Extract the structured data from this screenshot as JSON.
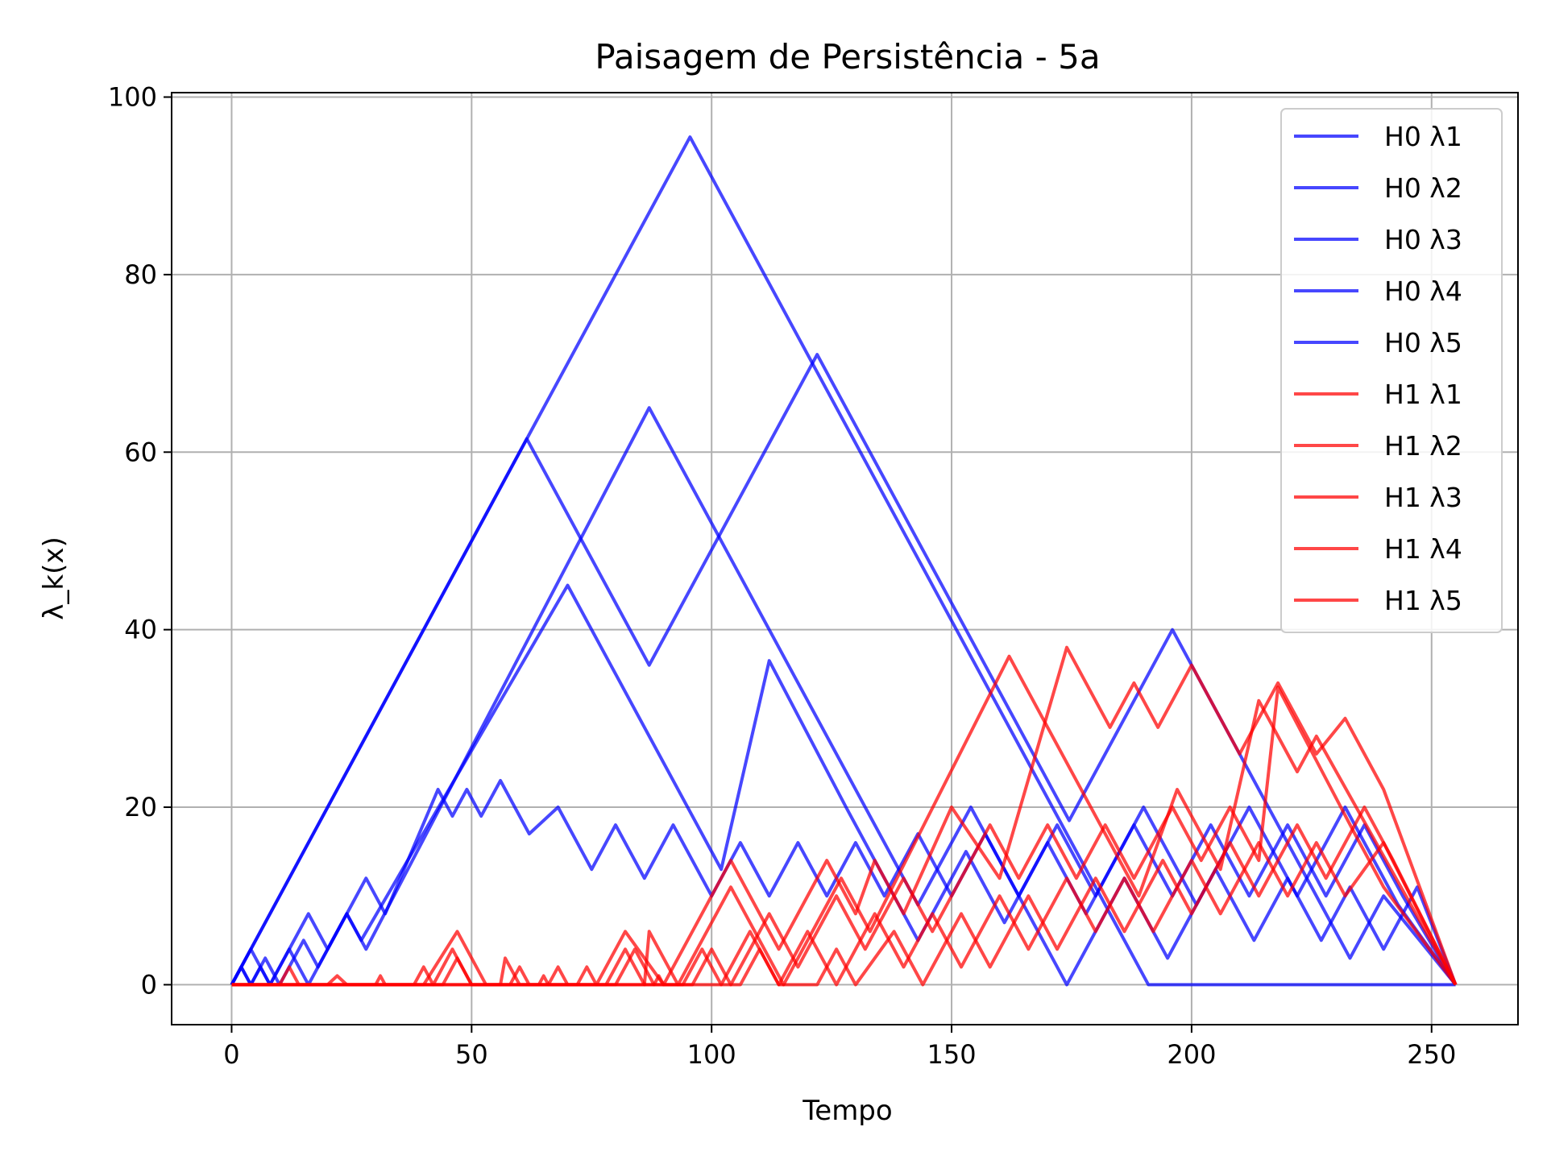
{
  "chart_data": {
    "type": "line",
    "title": "Paisagem de Persistência - 5a",
    "xlabel": "Tempo",
    "ylabel": "λ_k(x)",
    "xlim": [
      -12.5,
      268
    ],
    "ylim": [
      -4.5,
      100.5
    ],
    "xticks": [
      0,
      50,
      100,
      150,
      200,
      250
    ],
    "yticks": [
      0,
      20,
      40,
      60,
      80,
      100
    ],
    "grid": true,
    "legend_position": "upper right",
    "series": [
      {
        "name": "H0 λ1",
        "color": "#0000ff",
        "points": [
          [
            0,
            0
          ],
          [
            95.5,
            95.5
          ],
          [
            191,
            0
          ],
          [
            255,
            0
          ]
        ]
      },
      {
        "name": "H0 λ2",
        "color": "#0000ff",
        "points": [
          [
            0,
            0
          ],
          [
            61.5,
            61.5
          ],
          [
            87,
            36
          ],
          [
            122,
            71
          ],
          [
            160,
            33
          ],
          [
            174.5,
            18.5
          ],
          [
            196,
            40
          ],
          [
            233,
            3
          ],
          [
            240,
            10
          ],
          [
            255,
            0
          ]
        ]
      },
      {
        "name": "H0 λ3",
        "color": "#0000ff",
        "points": [
          [
            0,
            0
          ],
          [
            4,
            4
          ],
          [
            8,
            0
          ],
          [
            12,
            4
          ],
          [
            16,
            0
          ],
          [
            24,
            8
          ],
          [
            28,
            4
          ],
          [
            87,
            65
          ],
          [
            111,
            41
          ],
          [
            143,
            9
          ],
          [
            154,
            20
          ],
          [
            174,
            0
          ],
          [
            186,
            12
          ],
          [
            195,
            3
          ],
          [
            205,
            13
          ],
          [
            213,
            5
          ],
          [
            220,
            12
          ],
          [
            227,
            5
          ],
          [
            233,
            11
          ],
          [
            240,
            4
          ],
          [
            247,
            11
          ],
          [
            255,
            0
          ]
        ]
      },
      {
        "name": "H0 λ4",
        "color": "#0000ff",
        "points": [
          [
            0,
            0
          ],
          [
            2,
            2
          ],
          [
            4,
            0
          ],
          [
            6,
            2
          ],
          [
            8,
            0
          ],
          [
            16,
            8
          ],
          [
            20,
            4
          ],
          [
            24,
            8
          ],
          [
            27,
            5
          ],
          [
            70,
            45
          ],
          [
            102,
            13
          ],
          [
            112,
            36.5
          ],
          [
            128,
            20
          ],
          [
            143,
            5
          ],
          [
            153,
            15
          ],
          [
            161,
            7
          ],
          [
            170,
            16
          ],
          [
            178,
            8
          ],
          [
            190,
            20
          ],
          [
            201,
            9
          ],
          [
            212,
            20
          ],
          [
            222,
            10
          ],
          [
            232,
            20
          ],
          [
            243,
            9
          ],
          [
            255,
            0
          ]
        ]
      },
      {
        "name": "H0 λ5",
        "color": "#0000ff",
        "points": [
          [
            0,
            0
          ],
          [
            2,
            2
          ],
          [
            4,
            0
          ],
          [
            7,
            3
          ],
          [
            10,
            0
          ],
          [
            15,
            5
          ],
          [
            18,
            2
          ],
          [
            28,
            12
          ],
          [
            32,
            8
          ],
          [
            43,
            22
          ],
          [
            46,
            19
          ],
          [
            49,
            22
          ],
          [
            52,
            19
          ],
          [
            56,
            23
          ],
          [
            62,
            17
          ],
          [
            68,
            20
          ],
          [
            75,
            13
          ],
          [
            80,
            18
          ],
          [
            86,
            12
          ],
          [
            92,
            18
          ],
          [
            100,
            10
          ],
          [
            106,
            16
          ],
          [
            112,
            10
          ],
          [
            118,
            16
          ],
          [
            124,
            10
          ],
          [
            130,
            16
          ],
          [
            136,
            10
          ],
          [
            143,
            17
          ],
          [
            150,
            10
          ],
          [
            157,
            17
          ],
          [
            164,
            10
          ],
          [
            172,
            18
          ],
          [
            180,
            10
          ],
          [
            188,
            18
          ],
          [
            196,
            10
          ],
          [
            204,
            18
          ],
          [
            212,
            10
          ],
          [
            220,
            18
          ],
          [
            228,
            10
          ],
          [
            236,
            18
          ],
          [
            244,
            10
          ],
          [
            255,
            0
          ]
        ]
      },
      {
        "name": "H1 λ1",
        "color": "#ff0000",
        "points": [
          [
            0,
            0
          ],
          [
            10,
            0
          ],
          [
            12,
            2
          ],
          [
            14,
            0
          ],
          [
            40,
            0
          ],
          [
            47,
            6
          ],
          [
            53,
            0
          ],
          [
            86,
            0
          ],
          [
            87,
            6
          ],
          [
            93,
            0
          ],
          [
            104,
            11
          ],
          [
            115,
            0
          ],
          [
            127,
            12
          ],
          [
            133,
            6
          ],
          [
            162,
            37
          ],
          [
            189,
            10
          ],
          [
            197,
            22
          ],
          [
            206,
            13
          ],
          [
            214,
            32
          ],
          [
            222,
            24
          ],
          [
            226,
            28
          ],
          [
            255,
            0
          ]
        ]
      },
      {
        "name": "H1 λ2",
        "color": "#ff0000",
        "points": [
          [
            0,
            0
          ],
          [
            20,
            0
          ],
          [
            22,
            1
          ],
          [
            24,
            0
          ],
          [
            38,
            0
          ],
          [
            40,
            2
          ],
          [
            42,
            0
          ],
          [
            46,
            4
          ],
          [
            50,
            0
          ],
          [
            56,
            0
          ],
          [
            57,
            3
          ],
          [
            60,
            0
          ],
          [
            72,
            0
          ],
          [
            74,
            2
          ],
          [
            76,
            0
          ],
          [
            82,
            6
          ],
          [
            90,
            0
          ],
          [
            104,
            14
          ],
          [
            114,
            4
          ],
          [
            124,
            14
          ],
          [
            130,
            8
          ],
          [
            134,
            14
          ],
          [
            140,
            8
          ],
          [
            150,
            20
          ],
          [
            160,
            12
          ],
          [
            174,
            38
          ],
          [
            183,
            29
          ],
          [
            188,
            34
          ],
          [
            193,
            29
          ],
          [
            200,
            36
          ],
          [
            210,
            26
          ],
          [
            218,
            34
          ],
          [
            226,
            26
          ],
          [
            232,
            30
          ],
          [
            240,
            22
          ],
          [
            255,
            0
          ]
        ]
      },
      {
        "name": "H1 λ3",
        "color": "#ff0000",
        "points": [
          [
            0,
            0
          ],
          [
            30,
            0
          ],
          [
            31,
            1
          ],
          [
            32,
            0
          ],
          [
            44,
            0
          ],
          [
            47,
            3
          ],
          [
            50,
            0
          ],
          [
            58,
            0
          ],
          [
            60,
            2
          ],
          [
            62,
            0
          ],
          [
            66,
            0
          ],
          [
            68,
            2
          ],
          [
            70,
            0
          ],
          [
            80,
            0
          ],
          [
            84,
            4
          ],
          [
            88,
            0
          ],
          [
            96,
            0
          ],
          [
            100,
            4
          ],
          [
            104,
            0
          ],
          [
            112,
            8
          ],
          [
            118,
            2
          ],
          [
            126,
            10
          ],
          [
            132,
            4
          ],
          [
            140,
            12
          ],
          [
            146,
            6
          ],
          [
            158,
            18
          ],
          [
            164,
            12
          ],
          [
            170,
            18
          ],
          [
            176,
            12
          ],
          [
            182,
            18
          ],
          [
            188,
            12
          ],
          [
            196,
            20
          ],
          [
            202,
            14
          ],
          [
            208,
            20
          ],
          [
            214,
            14
          ],
          [
            218,
            33.5
          ],
          [
            234,
            17
          ],
          [
            240,
            11
          ],
          [
            255,
            0
          ]
        ]
      },
      {
        "name": "H1 λ4",
        "color": "#ff0000",
        "points": [
          [
            0,
            0
          ],
          [
            64,
            0
          ],
          [
            65,
            1
          ],
          [
            66,
            0
          ],
          [
            78,
            0
          ],
          [
            82,
            4
          ],
          [
            86,
            0
          ],
          [
            94,
            0
          ],
          [
            98,
            4
          ],
          [
            102,
            0
          ],
          [
            108,
            6
          ],
          [
            114,
            0
          ],
          [
            120,
            6
          ],
          [
            126,
            0
          ],
          [
            134,
            8
          ],
          [
            140,
            2
          ],
          [
            146,
            8
          ],
          [
            152,
            2
          ],
          [
            160,
            10
          ],
          [
            166,
            4
          ],
          [
            174,
            12
          ],
          [
            180,
            6
          ],
          [
            186,
            12
          ],
          [
            192,
            6
          ],
          [
            200,
            14
          ],
          [
            206,
            8
          ],
          [
            214,
            16
          ],
          [
            220,
            10
          ],
          [
            226,
            16
          ],
          [
            232,
            10
          ],
          [
            240,
            16
          ],
          [
            255,
            0
          ]
        ]
      },
      {
        "name": "H1 λ5",
        "color": "#ff0000",
        "points": [
          [
            0,
            0
          ],
          [
            88,
            0
          ],
          [
            89,
            1
          ],
          [
            90,
            0
          ],
          [
            106,
            0
          ],
          [
            110,
            4
          ],
          [
            114,
            0
          ],
          [
            122,
            0
          ],
          [
            126,
            4
          ],
          [
            130,
            0
          ],
          [
            138,
            6
          ],
          [
            144,
            0
          ],
          [
            152,
            8
          ],
          [
            158,
            2
          ],
          [
            166,
            10
          ],
          [
            172,
            4
          ],
          [
            180,
            12
          ],
          [
            186,
            6
          ],
          [
            194,
            14
          ],
          [
            200,
            8
          ],
          [
            208,
            16
          ],
          [
            214,
            10
          ],
          [
            222,
            18
          ],
          [
            228,
            12
          ],
          [
            236,
            20
          ],
          [
            242,
            14
          ],
          [
            255,
            0
          ]
        ]
      }
    ]
  }
}
